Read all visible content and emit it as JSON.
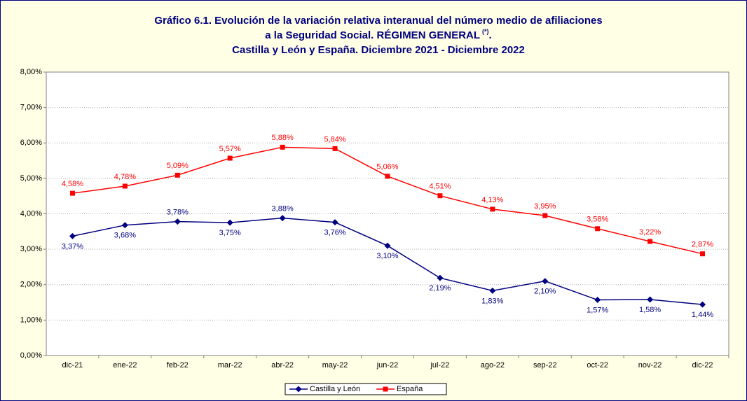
{
  "chart_data": {
    "type": "line",
    "title": {
      "line1": "Gráfico 6.1. Evolución de la variación relativa interanual del número medio de afiliaciones",
      "line2": "a la Seguridad Social. RÉGIMEN GENERAL",
      "note": "(*)",
      "line2_end": ".",
      "line3": "Castilla y León y España. Diciembre 2021 - Diciembre 2022"
    },
    "categories": [
      "dic-21",
      "ene-22",
      "feb-22",
      "mar-22",
      "abr-22",
      "may-22",
      "jun-22",
      "jul-22",
      "ago-22",
      "sep-22",
      "oct-22",
      "nov-22",
      "dic-22"
    ],
    "series": [
      {
        "name": "Castilla y León",
        "color": "#000080",
        "marker": "diamond",
        "values": [
          3.37,
          3.68,
          3.78,
          3.75,
          3.88,
          3.76,
          3.1,
          2.19,
          1.83,
          2.1,
          1.57,
          1.58,
          1.44
        ],
        "value_labels": [
          "3,37%",
          "3,68%",
          "3,78%",
          "3,75%",
          "3,88%",
          "3,76%",
          "3,10%",
          "2,19%",
          "1,83%",
          "2,10%",
          "1,57%",
          "1,58%",
          "1,44%"
        ]
      },
      {
        "name": "España",
        "color": "#ff0000",
        "marker": "square",
        "values": [
          4.58,
          4.78,
          5.09,
          5.57,
          5.88,
          5.84,
          5.06,
          4.51,
          4.13,
          3.95,
          3.58,
          3.22,
          2.87
        ],
        "value_labels": [
          "4,58%",
          "4,78%",
          "5,09%",
          "5,57%",
          "5,88%",
          "5,84%",
          "5,06%",
          "4,51%",
          "4,13%",
          "3,95%",
          "3,58%",
          "3,22%",
          "2,87%"
        ]
      }
    ],
    "ylim": [
      0,
      8
    ],
    "yticks": [
      {
        "value": 0,
        "label": "0,00%"
      },
      {
        "value": 1,
        "label": "1,00%"
      },
      {
        "value": 2,
        "label": "2,00%"
      },
      {
        "value": 3,
        "label": "3,00%"
      },
      {
        "value": 4,
        "label": "4,00%"
      },
      {
        "value": 5,
        "label": "5,00%"
      },
      {
        "value": 6,
        "label": "6,00%"
      },
      {
        "value": 7,
        "label": "7,00%"
      },
      {
        "value": 8,
        "label": "8,00%"
      }
    ],
    "grid": true,
    "legend": "bottom"
  }
}
